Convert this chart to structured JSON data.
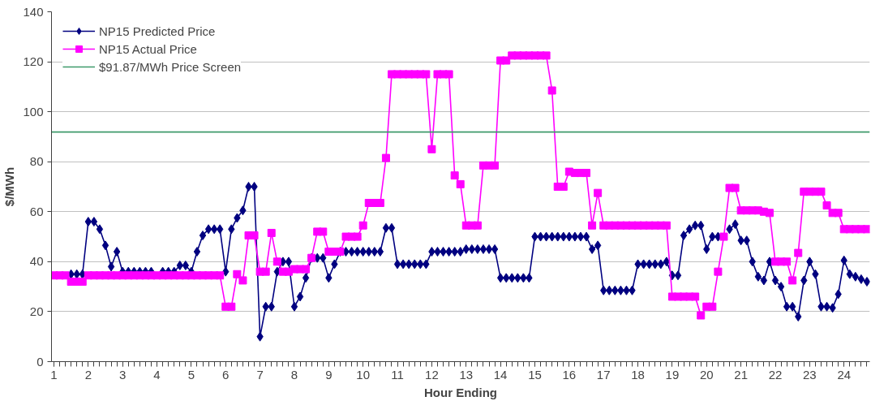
{
  "chart_data": {
    "type": "line",
    "xlabel": "Hour Ending",
    "ylabel": "$/MWh",
    "x": [
      1,
      1.167,
      1.333,
      1.5,
      1.667,
      1.833,
      2,
      2.167,
      2.333,
      2.5,
      2.667,
      2.833,
      3,
      3.167,
      3.333,
      3.5,
      3.667,
      3.833,
      4,
      4.167,
      4.333,
      4.5,
      4.667,
      4.833,
      5,
      5.167,
      5.333,
      5.5,
      5.667,
      5.833,
      6,
      6.167,
      6.333,
      6.5,
      6.667,
      6.833,
      7,
      7.167,
      7.333,
      7.5,
      7.667,
      7.833,
      8,
      8.167,
      8.333,
      8.5,
      8.667,
      8.833,
      9,
      9.167,
      9.333,
      9.5,
      9.667,
      9.833,
      10,
      10.167,
      10.333,
      10.5,
      10.667,
      10.833,
      11,
      11.167,
      11.333,
      11.5,
      11.667,
      11.833,
      12,
      12.167,
      12.333,
      12.5,
      12.667,
      12.833,
      13,
      13.167,
      13.333,
      13.5,
      13.667,
      13.833,
      14,
      14.167,
      14.333,
      14.5,
      14.667,
      14.833,
      15,
      15.167,
      15.333,
      15.5,
      15.667,
      15.833,
      16,
      16.167,
      16.333,
      16.5,
      16.667,
      16.833,
      17,
      17.167,
      17.333,
      17.5,
      17.667,
      17.833,
      18,
      18.167,
      18.333,
      18.5,
      18.667,
      18.833,
      19,
      19.167,
      19.333,
      19.5,
      19.667,
      19.833,
      20,
      20.167,
      20.333,
      20.5,
      20.667,
      20.833,
      21,
      21.167,
      21.333,
      21.5,
      21.667,
      21.833,
      22,
      22.167,
      22.333,
      22.5,
      22.667,
      22.833,
      23,
      23.167,
      23.333,
      23.5,
      23.667,
      23.833,
      24,
      24.167,
      24.333,
      24.5,
      24.667
    ],
    "xlim": [
      0.93,
      24.75
    ],
    "xticks": [
      1,
      2,
      3,
      4,
      5,
      6,
      7,
      8,
      9,
      10,
      11,
      12,
      13,
      14,
      15,
      16,
      17,
      18,
      19,
      20,
      21,
      22,
      23,
      24
    ],
    "series": [
      {
        "name": "NP15 Predicted Price",
        "color": "#000080",
        "marker": "diamond",
        "values": [
          null,
          null,
          null,
          35,
          35,
          35,
          56,
          56,
          53,
          46.5,
          38,
          44,
          36,
          36,
          36,
          36,
          36,
          36,
          null,
          36,
          36,
          36,
          38.5,
          38.5,
          36,
          44,
          50.5,
          53,
          53,
          53,
          36,
          53,
          57.5,
          60.5,
          70,
          70,
          10,
          22,
          22,
          36,
          40,
          40,
          22,
          26,
          33.5,
          41.5,
          41.5,
          41.5,
          33.5,
          39,
          44,
          44,
          44,
          44,
          44,
          44,
          44,
          44,
          53.5,
          53.5,
          39,
          39,
          39,
          39,
          39,
          39,
          44,
          44,
          44,
          44,
          44,
          44,
          45,
          45,
          45,
          45,
          45,
          45,
          33.5,
          33.5,
          33.5,
          33.5,
          33.5,
          33.5,
          50,
          50,
          50,
          50,
          50,
          50,
          50,
          50,
          50,
          50,
          45,
          46.5,
          28.5,
          28.5,
          28.5,
          28.5,
          28.5,
          28.5,
          39,
          39,
          39,
          39,
          39,
          40,
          34.5,
          34.5,
          50.5,
          53,
          54.5,
          54.5,
          45,
          50,
          50,
          null,
          53,
          55,
          48.5,
          48.5,
          40,
          34,
          32.5,
          40,
          32.5,
          30,
          22,
          22,
          18,
          32.5,
          40,
          35,
          22,
          22,
          21.5,
          27,
          40.5,
          35,
          34,
          33,
          32
        ]
      },
      {
        "name": "NP15 Actual Price",
        "color": "#ff00ff",
        "marker": "square",
        "values": [
          34.5,
          34.5,
          34.5,
          32,
          32,
          32,
          34.5,
          34.5,
          34.5,
          34.5,
          34.5,
          34.5,
          34.5,
          34.5,
          34.5,
          34.5,
          34.5,
          34.5,
          34.5,
          34.5,
          34.5,
          34.5,
          34.5,
          34.5,
          34.5,
          34.5,
          34.5,
          34.5,
          34.5,
          34.5,
          22,
          22,
          35,
          32.5,
          50.5,
          50.5,
          36,
          36,
          51.5,
          40,
          36,
          36,
          37,
          37,
          37,
          41.5,
          52,
          52,
          44,
          44,
          44,
          50,
          50,
          50,
          54.5,
          63.5,
          63.5,
          63.5,
          81.5,
          115,
          115,
          115,
          115,
          115,
          115,
          115,
          85,
          115,
          115,
          115,
          74.5,
          71,
          54.5,
          54.5,
          54.5,
          78.5,
          78.5,
          78.5,
          120.5,
          120.5,
          122.5,
          122.5,
          122.5,
          122.5,
          122.5,
          122.5,
          122.5,
          108.5,
          70,
          70,
          76,
          75.5,
          75.5,
          75.5,
          54.5,
          67.5,
          54.5,
          54.5,
          54.5,
          54.5,
          54.5,
          54.5,
          54.5,
          54.5,
          54.5,
          54.5,
          54.5,
          54.5,
          26,
          26,
          26,
          26,
          26,
          18.5,
          22,
          22,
          36,
          50,
          69.5,
          69.5,
          60.5,
          60.5,
          60.5,
          60.5,
          60,
          59.5,
          40,
          40,
          40,
          32.5,
          43.5,
          68,
          68,
          68,
          68,
          62.5,
          59.5,
          59.5,
          53,
          53,
          53,
          53,
          53
        ]
      }
    ],
    "ref_lines": [
      {
        "axis": "y",
        "value": 91.87,
        "label": "$91.87/MWh Price Screen",
        "color": "#3f9a6b",
        "line_style": "solid"
      }
    ],
    "ylim": [
      0,
      140
    ],
    "yticks": [
      0,
      20,
      40,
      60,
      80,
      100,
      120,
      140
    ],
    "grid": "y",
    "legend": "top left"
  }
}
